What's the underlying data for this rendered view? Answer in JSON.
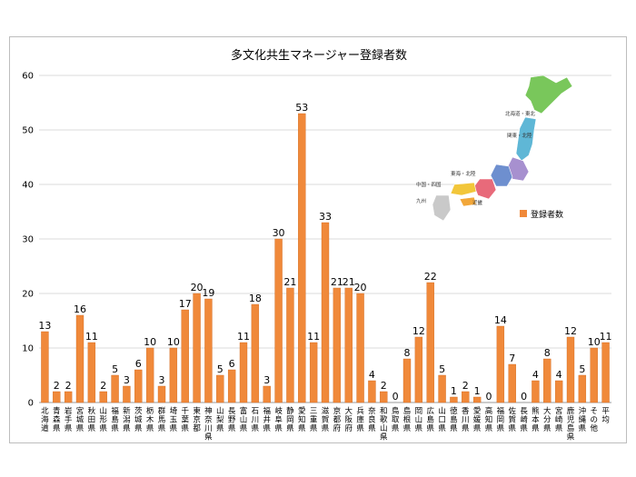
{
  "chart_data": {
    "type": "bar",
    "title": "多文化共生マネージャー登録者数",
    "xlabel": "",
    "ylabel": "",
    "ylim": [
      0,
      60
    ],
    "yticks": [
      0,
      10,
      20,
      30,
      40,
      50,
      60
    ],
    "grid": true,
    "legend": [
      "登録者数"
    ],
    "legend_position": "right",
    "bar_color": "#F0893A",
    "categories": [
      "北海道",
      "青森県",
      "岩手県",
      "宮城県",
      "秋田県",
      "山形県",
      "福島県",
      "新潟県",
      "茨城県",
      "栃木県",
      "群馬県",
      "埼玉県",
      "千葉県",
      "東京都",
      "神奈川県",
      "山梨県",
      "長野県",
      "富山県",
      "石川県",
      "福井県",
      "岐阜県",
      "静岡県",
      "愛知県",
      "三重県",
      "滋賀県",
      "京都府",
      "大阪府",
      "兵庫県",
      "奈良県",
      "和歌山県",
      "鳥取県",
      "島根県",
      "岡山県",
      "広島県",
      "山口県",
      "徳島県",
      "香川県",
      "愛媛県",
      "高知県",
      "福岡県",
      "佐賀県",
      "長崎県",
      "熊本県",
      "大分県",
      "宮崎県",
      "鹿児島県",
      "沖縄県",
      "その他",
      "平均"
    ],
    "values": [
      13,
      2,
      2,
      16,
      11,
      2,
      5,
      3,
      6,
      10,
      3,
      10,
      17,
      20,
      19,
      5,
      6,
      11,
      18,
      3,
      30,
      21,
      53,
      11,
      33,
      21,
      21,
      20,
      4,
      2,
      0,
      8,
      12,
      22,
      5,
      1,
      2,
      1,
      0,
      14,
      7,
      0,
      4,
      8,
      4,
      12,
      5,
      10,
      11
    ]
  },
  "map": {
    "labels": [
      "北海道・東北",
      "関東・北陸",
      "東海・北陸",
      "近畿",
      "中国・四国",
      "九州"
    ]
  }
}
